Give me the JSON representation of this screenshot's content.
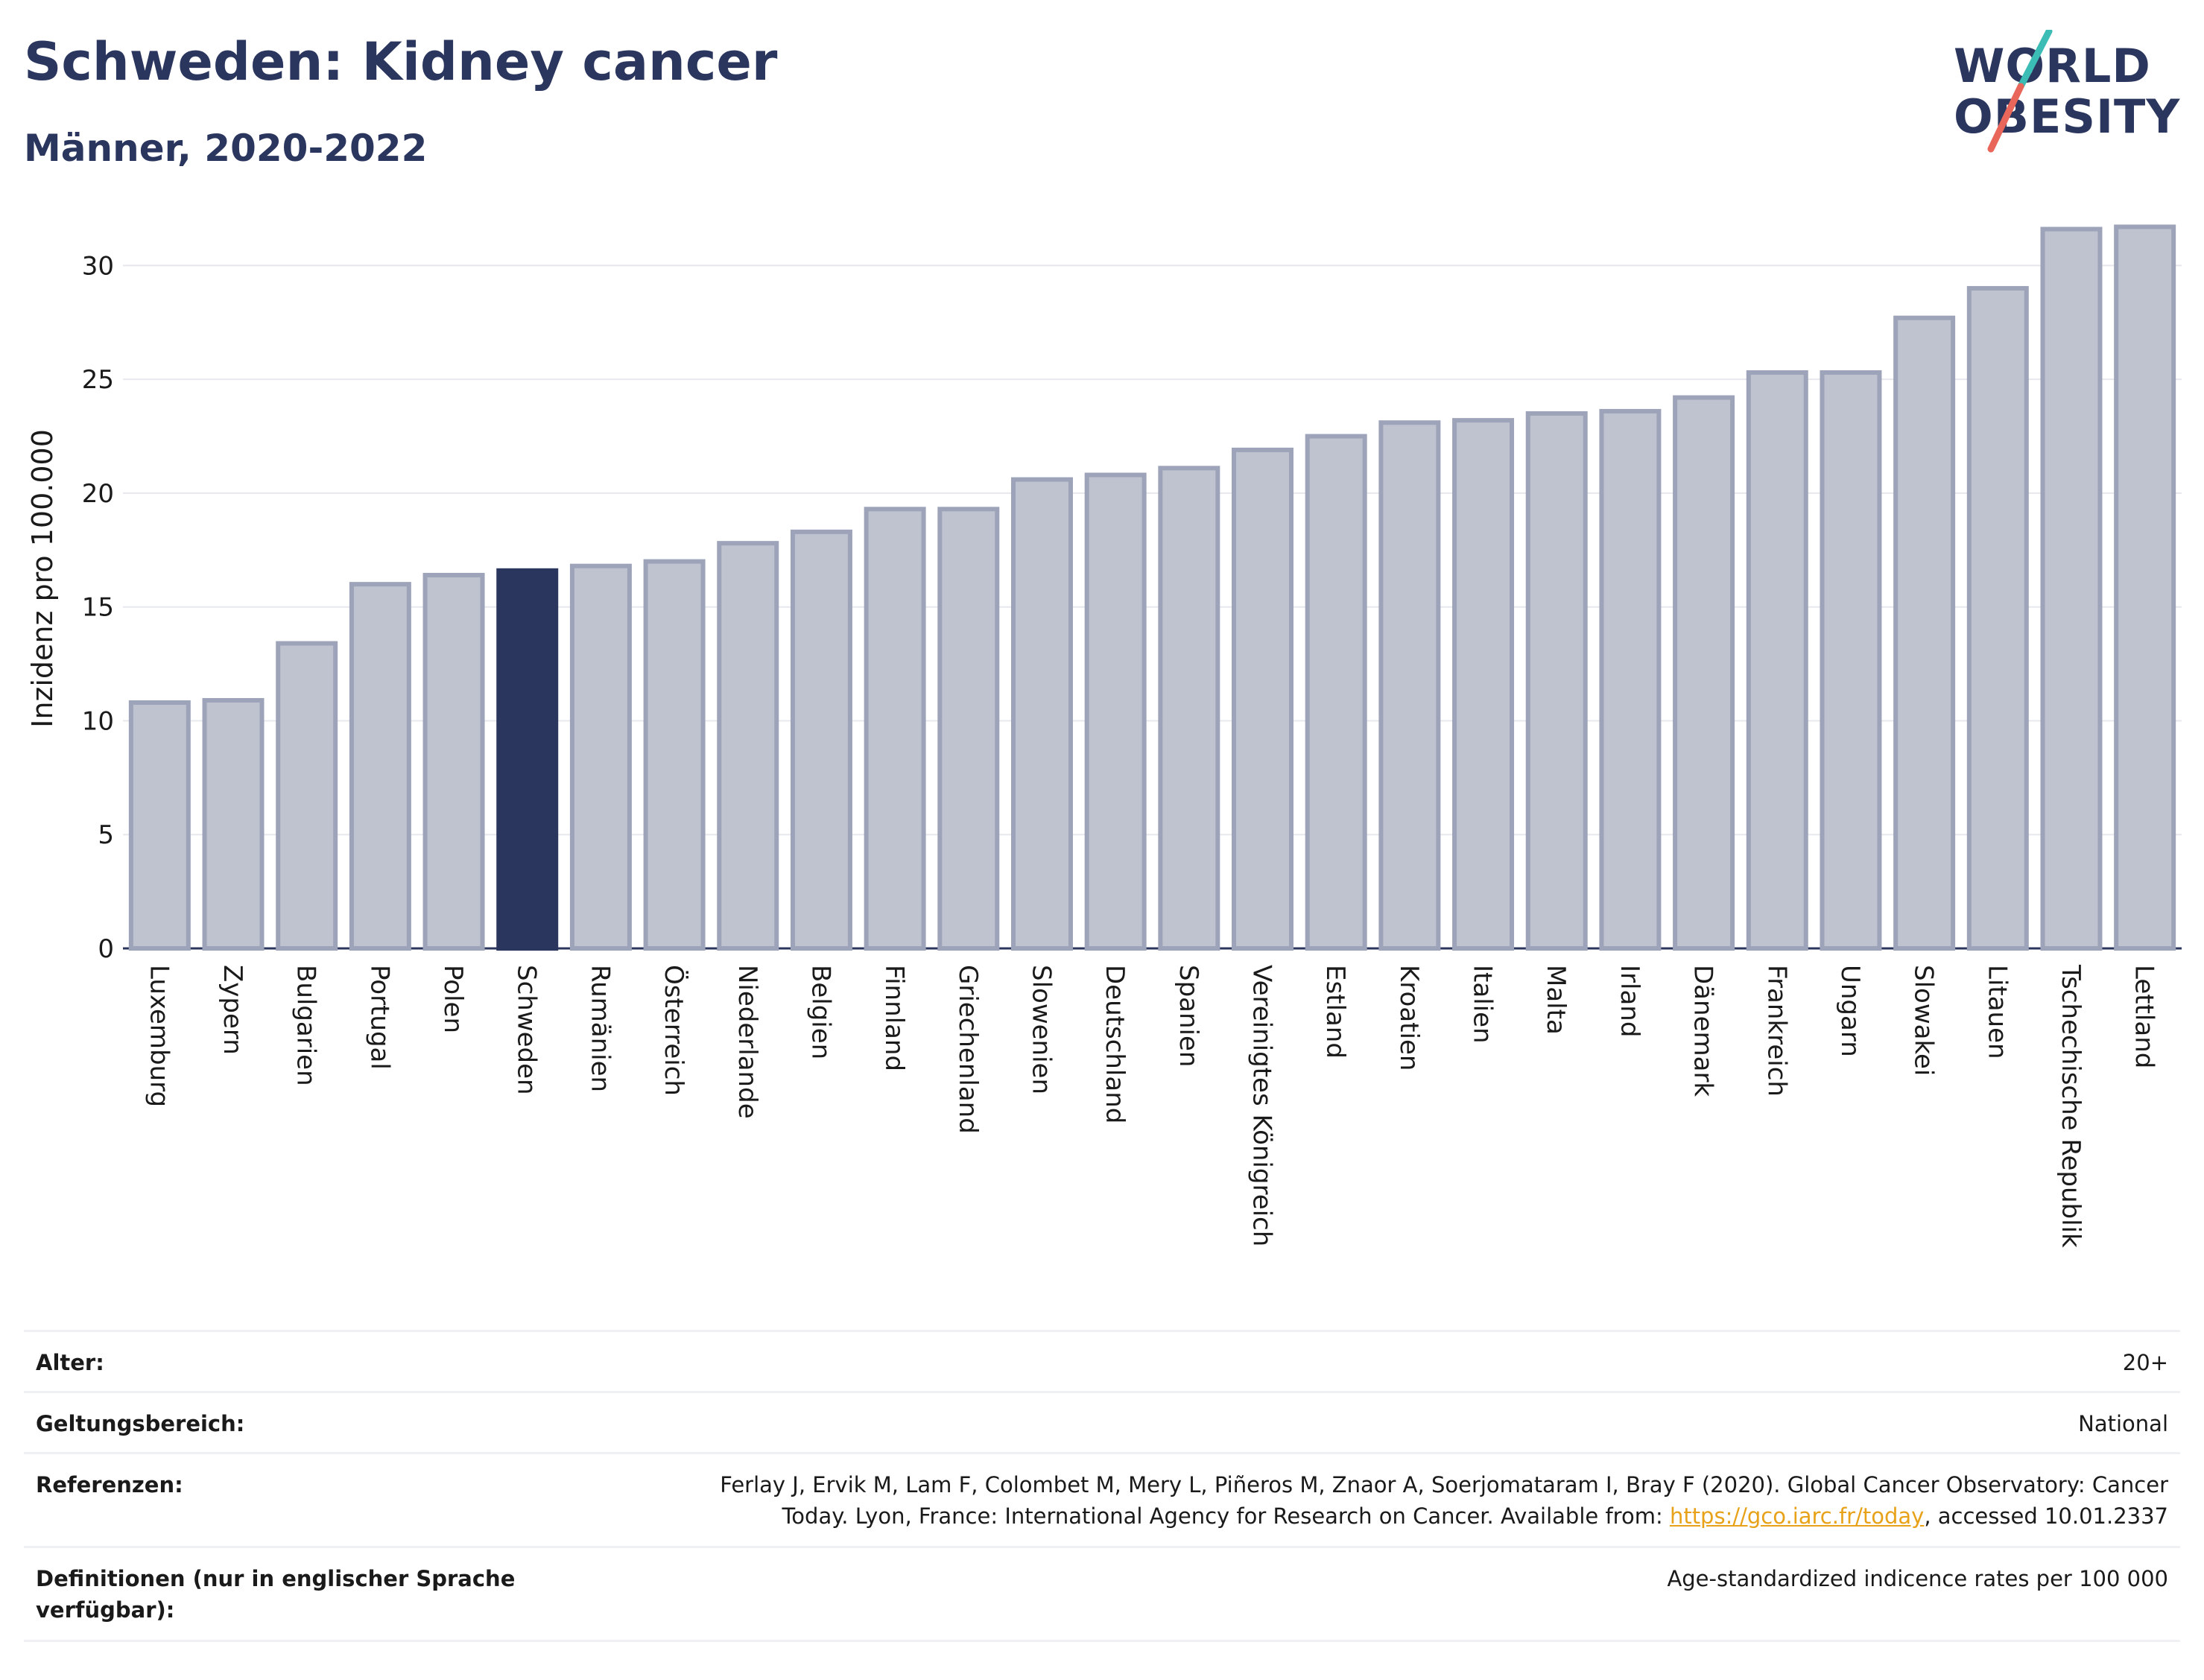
{
  "header": {
    "title": "Schweden: Kidney cancer",
    "subtitle": "Männer, 2020-2022"
  },
  "logo": {
    "line1": "WORLD",
    "line2": "OBESITY"
  },
  "colors": {
    "highlight_bar": "#2b365e",
    "bar_fill": "#bfc3cf",
    "bar_stroke": "#9da3b8",
    "title": "#2b365e",
    "logo_accent_teal": "#3bbdb5",
    "logo_accent_red": "#e8665a",
    "link": "#e8a21a"
  },
  "chart_data": {
    "type": "bar",
    "ylabel": "Inzidenz pro 100.000",
    "xlabel": "",
    "ylim": [
      0,
      32.5
    ],
    "yticks": [
      0,
      5,
      10,
      15,
      20,
      25,
      30
    ],
    "grid": true,
    "highlight": "Schweden",
    "categories": [
      "Luxemburg",
      "Zypern",
      "Bulgarien",
      "Portugal",
      "Polen",
      "Schweden",
      "Rumänien",
      "Österreich",
      "Niederlande",
      "Belgien",
      "Finnland",
      "Griechenland",
      "Slowenien",
      "Deutschland",
      "Spanien",
      "Vereinigtes Königreich",
      "Estland",
      "Kroatien",
      "Italien",
      "Malta",
      "Irland",
      "Dänemark",
      "Frankreich",
      "Ungarn",
      "Slowakei",
      "Litauen",
      "Tschechische Republik",
      "Lettland"
    ],
    "values": [
      10.8,
      10.9,
      13.4,
      16.0,
      16.4,
      16.6,
      16.8,
      17.0,
      17.8,
      18.3,
      19.3,
      19.3,
      20.6,
      20.8,
      21.1,
      21.9,
      22.5,
      23.1,
      23.2,
      23.5,
      23.6,
      24.2,
      25.3,
      25.3,
      27.7,
      29.0,
      31.6,
      31.7
    ]
  },
  "meta": {
    "age_label": "Alter:",
    "age_value": "20+",
    "scope_label": "Geltungsbereich:",
    "scope_value": "National",
    "references_label": "Referenzen:",
    "references_line1": "Ferlay J, Ervik M, Lam F, Colombet M, Mery L, Piñeros M, Znaor A, Soerjomataram I, Bray F (2020). Global Cancer Observatory: Cancer",
    "references_line2_pre": "Today. Lyon, France: International Agency for Research on Cancer. Available from: ",
    "references_link": "https://gco.iarc.fr/today",
    "references_line2_post": ", accessed 10.01.2337",
    "definitions_label_line1": "Definitionen (nur in englischer Sprache",
    "definitions_label_line2": "verfügbar):",
    "definitions_value": "Age-standardized indicence rates per 100 000"
  }
}
